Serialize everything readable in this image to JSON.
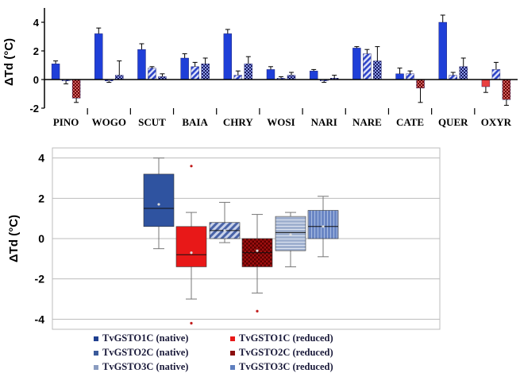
{
  "chart_data": [
    {
      "type": "bar",
      "ylabel": "ΔTd (°C)",
      "ylim": [
        -2,
        5
      ],
      "yticks": [
        -2,
        0,
        2,
        4
      ],
      "grid": false,
      "categories": [
        "PINO",
        "WOGO",
        "SCUT",
        "BAIA",
        "CHRY",
        "WOSI",
        "NARI",
        "NARE",
        "CATE",
        "QUER",
        "OXYR"
      ],
      "series": [
        {
          "name": "TvGSTO1C (native)",
          "values": [
            1.1,
            3.2,
            2.1,
            1.5,
            3.2,
            0.7,
            0.6,
            2.2,
            0.4,
            4.0,
            -0.5
          ],
          "errors": [
            0.2,
            0.4,
            0.4,
            0.3,
            0.3,
            0.2,
            0.1,
            0.1,
            0.4,
            0.5,
            0.4
          ],
          "color": "#1f3fd8",
          "pattern": "solid"
        },
        {
          "name": "TvGSTO1C (reduced)",
          "values": [
            -0.1,
            -0.1,
            0.8,
            0.9,
            0.3,
            0.1,
            -0.1,
            1.8,
            0.4,
            0.3,
            0.7
          ],
          "errors": [
            0.2,
            0.1,
            0.1,
            0.3,
            0.3,
            0.1,
            0.1,
            0.3,
            0.2,
            0.2,
            0.5
          ],
          "color": "#4058d8",
          "pattern": "stripes"
        },
        {
          "name": "TvGSTO2C (native)",
          "values": [
            -1.3,
            0.3,
            0.2,
            1.1,
            1.1,
            0.3,
            0.1,
            1.3,
            -0.6,
            0.9,
            -1.4
          ],
          "errors": [
            0.3,
            1.0,
            0.2,
            0.4,
            0.5,
            0.2,
            0.2,
            1.0,
            1.0,
            0.6,
            0.4
          ],
          "color": "#8b0f0f",
          "pattern": "checker"
        }
      ]
    },
    {
      "type": "box",
      "ylabel": "ΔTd (°C)",
      "ylim": [
        -4.5,
        4.5
      ],
      "yticks": [
        -4,
        -2,
        0,
        2,
        4
      ],
      "grid": true,
      "legend_position": "bottom",
      "boxes": [
        {
          "min": -0.5,
          "q1": 0.6,
          "median": 1.5,
          "q3": 3.2,
          "max": 4.0,
          "mean": 1.7,
          "outliers": [],
          "color": "#2f53a0",
          "pattern": "solid"
        },
        {
          "min": -3.0,
          "q1": -1.4,
          "median": -0.8,
          "q3": 0.6,
          "max": 1.3,
          "mean": -0.7,
          "outliers": [
            3.6,
            -4.2
          ],
          "color": "#e81818",
          "pattern": "solid"
        },
        {
          "min": -0.2,
          "q1": 0.0,
          "median": 0.4,
          "q3": 0.8,
          "max": 1.8,
          "mean": 0.4,
          "outliers": [],
          "color": "#4a64a8",
          "pattern": "stripes"
        },
        {
          "min": -2.7,
          "q1": -1.4,
          "median": -0.7,
          "q3": 0.0,
          "max": 1.2,
          "mean": -0.6,
          "outliers": [
            -3.6
          ],
          "color": "#a01010",
          "pattern": "checker"
        },
        {
          "min": -1.4,
          "q1": -0.6,
          "median": 0.3,
          "q3": 1.1,
          "max": 1.3,
          "mean": 0.2,
          "outliers": [],
          "color": "#98a8c8",
          "pattern": "hlines"
        },
        {
          "min": -0.9,
          "q1": 0.0,
          "median": 0.6,
          "q3": 1.4,
          "max": 2.1,
          "mean": 0.6,
          "outliers": [],
          "color": "#6a86c4",
          "pattern": "vlines"
        }
      ],
      "legend": [
        {
          "label": "TvGSTO1C (native)",
          "color": "#1f3f8f"
        },
        {
          "label": "TvGSTO1C (reduced)",
          "color": "#e81818"
        },
        {
          "label": "TvGSTO2C (native)",
          "color": "#3a5a9a"
        },
        {
          "label": "TvGSTO2C (reduced)",
          "color": "#8b0f0f"
        },
        {
          "label": "TvGSTO3C (native)",
          "color": "#8a9cc0"
        },
        {
          "label": "TvGSTO3C (reduced)",
          "color": "#5f7fbf"
        }
      ]
    }
  ]
}
